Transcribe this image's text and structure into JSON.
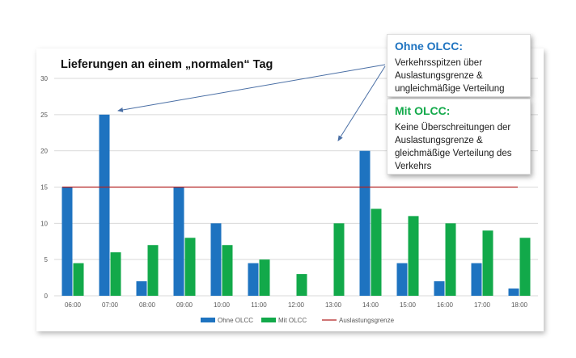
{
  "chart_data": {
    "type": "bar",
    "title": "Lieferungen an einem „normalen“ Tag",
    "categories": [
      "06:00",
      "07:00",
      "08:00",
      "09:00",
      "10:00",
      "11:00",
      "12:00",
      "13:00",
      "14:00",
      "15:00",
      "16:00",
      "17:00",
      "18:00"
    ],
    "series": [
      {
        "name": "Ohne OLCC",
        "color": "#1e73c0",
        "values": [
          15,
          25,
          2,
          15,
          10,
          4.5,
          0,
          0,
          20,
          4.5,
          2,
          4.5,
          1
        ]
      },
      {
        "name": "Mit OLCC",
        "color": "#12a94a",
        "values": [
          4.5,
          6,
          7,
          8,
          7,
          5,
          3,
          10,
          12,
          11,
          10,
          9,
          8
        ]
      }
    ],
    "reference_line": {
      "name": "Auslastungsgrenze",
      "value": 15,
      "color": "#b22222"
    },
    "ylim": [
      0,
      30
    ],
    "yticks": [
      0,
      5,
      10,
      15,
      20,
      25,
      30
    ],
    "xlabel": "",
    "ylabel": "",
    "grid": true,
    "legend_position": "bottom"
  },
  "callouts": {
    "ohne": {
      "title": "Ohne OLCC:",
      "body": "Verkehrsspitzen über Auslastungsgrenze & ungleichmäßige Verteilung",
      "title_color": "#1e73c0"
    },
    "mit": {
      "title": "Mit OLCC:",
      "body": "Keine Überschreitungen der Auslastungsgrenze & gleichmäßige Verteilung des Verkehrs",
      "title_color": "#12a94a"
    }
  }
}
